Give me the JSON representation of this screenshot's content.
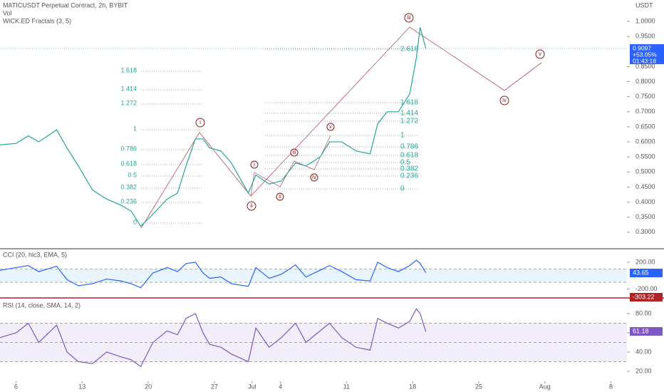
{
  "chart_data": [
    {
      "type": "line",
      "title": "MATICUSDT Perpetual Contract, 2h, BYBIT",
      "subtitle": "Vol",
      "indicator": "WiCK.ED Fractals (3, 5)",
      "unit": "USDT",
      "x": [
        -1.7,
        0,
        1.3,
        2.4,
        4.3,
        5.4,
        6.6,
        8.1,
        9.6,
        11.1,
        12.2,
        13.2,
        14.5,
        16,
        17.1,
        18,
        19,
        19.8,
        20.5,
        21.7,
        22.8,
        24.6,
        25.4,
        26.8,
        28.1,
        29.6,
        30.7,
        32.2,
        33.2,
        34.5,
        36,
        37.5,
        38.3,
        39.3,
        40.5,
        41.7,
        42.4,
        42.8,
        43.4
      ],
      "series": [
        {
          "name": "MATICUSDT",
          "color": "#26a69a",
          "values": [
            0.59,
            0.595,
            0.62,
            0.6,
            0.64,
            0.58,
            0.52,
            0.44,
            0.41,
            0.39,
            0.37,
            0.32,
            0.36,
            0.41,
            0.43,
            0.52,
            0.61,
            0.61,
            0.58,
            0.57,
            0.53,
            0.43,
            0.49,
            0.46,
            0.47,
            0.53,
            0.52,
            0.55,
            0.6,
            0.6,
            0.57,
            0.56,
            0.66,
            0.7,
            0.7,
            0.76,
            0.88,
            0.98,
            0.91
          ]
        }
      ],
      "xlim": [
        -1.7,
        64.7
      ],
      "xticks": [
        {
          "value": 0,
          "label": "6"
        },
        {
          "value": 7,
          "label": "13"
        },
        {
          "value": 14,
          "label": "20"
        },
        {
          "value": 21,
          "label": "27"
        },
        {
          "value": 25,
          "label": "Jul"
        },
        {
          "value": 28,
          "label": "4"
        },
        {
          "value": 35,
          "label": "11"
        },
        {
          "value": 42,
          "label": "18"
        },
        {
          "value": 49,
          "label": "25"
        },
        {
          "value": 56,
          "label": "Aug"
        },
        {
          "value": 63,
          "label": "8"
        }
      ],
      "ylim": [
        0.2476,
        1.071
      ],
      "yticks": [
        {
          "value": 0.3,
          "label": "0.3000"
        },
        {
          "value": 0.35,
          "label": "0.3500"
        },
        {
          "value": 0.4,
          "label": "0.4000"
        },
        {
          "value": 0.45,
          "label": "0.4500"
        },
        {
          "value": 0.5,
          "label": "0.5000"
        },
        {
          "value": 0.55,
          "label": "0.5500"
        },
        {
          "value": 0.6,
          "label": "0.6000"
        },
        {
          "value": 0.65,
          "label": "0.6500"
        },
        {
          "value": 0.7,
          "label": "0.7000"
        },
        {
          "value": 0.75,
          "label": "0.7500"
        },
        {
          "value": 0.8,
          "label": "0.8000"
        },
        {
          "value": 0.85,
          "label": "0.8500"
        },
        {
          "value": 0.95,
          "label": "0.9500"
        },
        {
          "value": 1.0,
          "label": "1.0000"
        }
      ],
      "price_tag": [
        "0.9097",
        "+53.05%",
        "01:43:18"
      ],
      "fib_left": [
        "1.618",
        "1.414",
        "1.272",
        "1",
        "0.786",
        "0.618",
        "0.5",
        "0.382",
        "0.236",
        "0"
      ],
      "fib_right": [
        "2.618",
        "1.618",
        "1.414",
        "1.272",
        "1",
        "0.786",
        "0.618",
        "0.5",
        "0.382",
        "0.236",
        "0"
      ],
      "waves": [
        "i",
        "ii",
        "iii",
        "iv",
        "v",
        "i",
        "ii",
        "iii",
        "iv",
        "v"
      ]
    },
    {
      "type": "line",
      "title": "CCI (20, hlc3, EMA, 5)",
      "series": [
        {
          "name": "CCI",
          "color": "#2962ff",
          "values": [
            80,
            120,
            150,
            60,
            140,
            -60,
            -150,
            -120,
            -50,
            -80,
            -120,
            -180,
            40,
            120,
            60,
            180,
            200,
            40,
            -40,
            -20,
            -120,
            -160,
            120,
            -40,
            20,
            160,
            -20,
            80,
            150,
            60,
            -60,
            -80,
            200,
            120,
            60,
            150,
            230,
            180,
            44
          ]
        }
      ],
      "ylim": [
        -300,
        390
      ],
      "yticks": [
        {
          "value": 200,
          "label": "200.00"
        },
        {
          "value": -200,
          "label": "-200.00"
        }
      ],
      "bands": [
        -100,
        100
      ],
      "value_tags": [
        "43.65",
        "-303.22"
      ]
    },
    {
      "type": "line",
      "title": "RSI (14, close, SMA, 14, 2)",
      "series": [
        {
          "name": "RSI",
          "color": "#7e57c2",
          "values": [
            55,
            60,
            70,
            50,
            68,
            40,
            30,
            28,
            40,
            35,
            32,
            25,
            50,
            62,
            58,
            75,
            80,
            60,
            48,
            45,
            38,
            30,
            65,
            45,
            55,
            70,
            50,
            62,
            70,
            55,
            45,
            42,
            75,
            70,
            65,
            72,
            85,
            80,
            61
          ]
        }
      ],
      "ylim": [
        9.6,
        94.8
      ],
      "yticks": [
        {
          "value": 80,
          "label": "80.00"
        },
        {
          "value": 60,
          "label": "60.00"
        },
        {
          "value": 40,
          "label": "40.00"
        },
        {
          "value": 20,
          "label": "20.00"
        }
      ],
      "bands": [
        30,
        50,
        70
      ],
      "value_tags": [
        "61.18"
      ]
    }
  ]
}
